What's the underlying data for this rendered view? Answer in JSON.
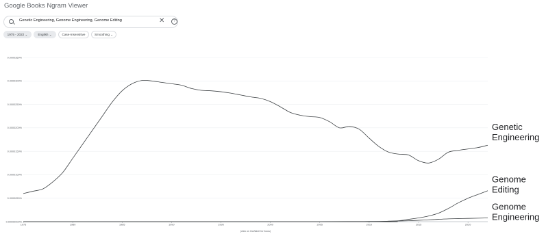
{
  "app": {
    "title": "Google Books Ngram Viewer"
  },
  "search": {
    "query": "Genetic Engineering, Genome Engineering, Genome Editing",
    "clear_icon": "close-icon",
    "help_icon": "help-icon"
  },
  "chips": [
    {
      "label": "1975 - 2022 ⌄"
    },
    {
      "label": "English ⌄"
    },
    {
      "label": "Case-Insensitive"
    },
    {
      "label": "Smoothing ⌄"
    }
  ],
  "chart_data": {
    "type": "line",
    "xlabel": "(click on line/label for focus)",
    "ylabel": "",
    "xlim": [
      1975,
      2022
    ],
    "ylim": [
      0,
      3.5e-07
    ],
    "x_ticks": [
      "1975",
      "1980",
      "1985",
      "1990",
      "1995",
      "2000",
      "2005",
      "2010",
      "2015",
      "2020"
    ],
    "y_ticks": [
      "0.00000000%",
      "0.0000050%",
      "0.0000100%",
      "0.0000150%",
      "0.0000200%",
      "0.0000250%",
      "0.0000300%",
      "0.0000350%"
    ],
    "grid": true,
    "series": [
      {
        "name": "Genetic Engineering",
        "label_lines": [
          "Genetic",
          "Engineering"
        ],
        "color": "#3c4043",
        "x": [
          1975,
          1976,
          1977,
          1978,
          1979,
          1980,
          1981,
          1982,
          1983,
          1984,
          1985,
          1986,
          1987,
          1988,
          1989,
          1990,
          1991,
          1992,
          1993,
          1994,
          1995,
          1996,
          1997,
          1998,
          1999,
          2000,
          2001,
          2002,
          2003,
          2004,
          2005,
          2006,
          2007,
          2008,
          2009,
          2010,
          2011,
          2012,
          2013,
          2014,
          2015,
          2016,
          2017,
          2018,
          2019,
          2020,
          2021,
          2022
        ],
        "values": [
          6e-08,
          6.5e-08,
          7e-08,
          8.5e-08,
          1.05e-07,
          1.35e-07,
          1.65e-07,
          1.95e-07,
          2.25e-07,
          2.55e-07,
          2.79e-07,
          2.94e-07,
          3.01e-07,
          3e-07,
          2.97e-07,
          2.94e-07,
          2.91e-07,
          2.84e-07,
          2.8e-07,
          2.79e-07,
          2.77e-07,
          2.74e-07,
          2.7e-07,
          2.66e-07,
          2.63e-07,
          2.56e-07,
          2.45e-07,
          2.33e-07,
          2.27e-07,
          2.24e-07,
          2.22e-07,
          2.13e-07,
          2e-07,
          2.03e-07,
          1.97e-07,
          1.78e-07,
          1.6e-07,
          1.48e-07,
          1.44e-07,
          1.42e-07,
          1.3e-07,
          1.25e-07,
          1.33e-07,
          1.48e-07,
          1.52e-07,
          1.55e-07,
          1.58e-07,
          1.63e-07
        ]
      },
      {
        "name": "Genome Editing",
        "label_lines": [
          "Genome",
          "Editing"
        ],
        "color": "#3c4043",
        "x": [
          1975,
          2010,
          2011,
          2012,
          2013,
          2014,
          2015,
          2016,
          2017,
          2018,
          2019,
          2020,
          2021,
          2022
        ],
        "values": [
          0.0,
          0.0,
          0.0,
          1e-09,
          2e-09,
          5e-09,
          8e-09,
          1.2e-08,
          1.8e-08,
          2.8e-08,
          4e-08,
          5e-08,
          5.8e-08,
          6.6e-08
        ]
      },
      {
        "name": "Genome Engineering",
        "label_lines": [
          "Genome",
          "Engineering"
        ],
        "color": "#3c4043",
        "x": [
          1975,
          2005,
          2010,
          2012,
          2014,
          2015,
          2016,
          2017,
          2018,
          2019,
          2020,
          2021,
          2022
        ],
        "values": [
          0.0,
          2e-10,
          5e-10,
          1e-09,
          2e-09,
          3e-09,
          4e-09,
          5e-09,
          6e-09,
          6.5e-09,
          7e-09,
          7.5e-09,
          8e-09
        ]
      }
    ]
  }
}
